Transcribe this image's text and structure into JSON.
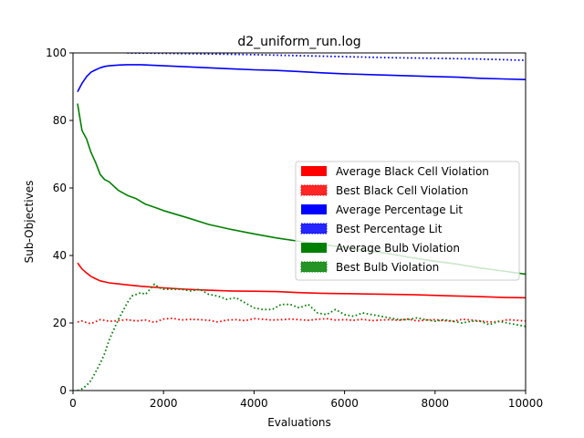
{
  "chart_data": {
    "type": "line",
    "title": "d2_uniform_run.log",
    "xlabel": "Evaluations",
    "ylabel": "Sub-Objectives",
    "xlim": [
      0,
      10000
    ],
    "ylim": [
      0,
      100
    ],
    "xticks": [
      0,
      2000,
      4000,
      6000,
      8000,
      10000
    ],
    "yticks": [
      0,
      20,
      40,
      60,
      80,
      100
    ],
    "grid": false,
    "legend_position": "center-right",
    "series": [
      {
        "name": "Average Black Cell Violation",
        "color": "#ff0000",
        "style": "solid",
        "x": [
          100,
          200,
          300,
          400,
          500,
          600,
          700,
          800,
          1000,
          1200,
          1500,
          2000,
          2500,
          3000,
          3500,
          4000,
          4500,
          5000,
          5500,
          6000,
          6500,
          7000,
          7500,
          8000,
          8500,
          9000,
          9500,
          10000
        ],
        "y": [
          37.8,
          36.0,
          34.8,
          33.8,
          33.1,
          32.5,
          32.2,
          31.9,
          31.6,
          31.3,
          30.9,
          30.4,
          30.0,
          29.7,
          29.5,
          29.4,
          29.3,
          29.0,
          28.8,
          28.7,
          28.6,
          28.5,
          28.4,
          28.2,
          28.0,
          27.8,
          27.6,
          27.5
        ]
      },
      {
        "name": "Best Black Cell Violation",
        "color": "#ff0000",
        "style": "dotted",
        "x": [
          100,
          200,
          300,
          400,
          500,
          600,
          700,
          800,
          1000,
          1200,
          1400,
          1600,
          1800,
          2000,
          2200,
          2400,
          2600,
          2800,
          3000,
          3200,
          3400,
          3600,
          3800,
          4000,
          4200,
          4400,
          4600,
          4800,
          5000,
          5200,
          5400,
          5600,
          5800,
          6000,
          6200,
          6400,
          6600,
          6800,
          7000,
          7200,
          7400,
          7600,
          7800,
          8000,
          8200,
          8400,
          8600,
          8800,
          9000,
          9200,
          9400,
          9600,
          9800,
          10000
        ],
        "y": [
          20.3,
          20.6,
          20.1,
          19.8,
          20.4,
          21.0,
          20.8,
          20.5,
          20.7,
          21.0,
          20.6,
          20.9,
          20.2,
          21.2,
          21.4,
          20.9,
          21.1,
          21.0,
          20.8,
          20.3,
          20.9,
          21.0,
          20.7,
          21.3,
          21.1,
          20.9,
          21.0,
          21.2,
          21.0,
          20.8,
          21.1,
          21.3,
          20.9,
          21.0,
          20.8,
          21.1,
          20.7,
          20.9,
          21.0,
          20.8,
          21.2,
          20.6,
          20.9,
          21.0,
          20.7,
          20.5,
          21.1,
          20.9,
          20.6,
          20.3,
          20.4,
          21.0,
          20.8,
          20.6
        ]
      },
      {
        "name": "Average Percentage Lit",
        "color": "#0000ff",
        "style": "solid",
        "x": [
          100,
          200,
          300,
          400,
          500,
          600,
          700,
          800,
          1000,
          1200,
          1500,
          2000,
          2500,
          3000,
          3500,
          4000,
          4500,
          5000,
          5500,
          6000,
          6500,
          7000,
          7500,
          8000,
          8500,
          9000,
          9500,
          10000
        ],
        "y": [
          88.5,
          91.0,
          93.0,
          94.3,
          95.0,
          95.6,
          96.0,
          96.2,
          96.4,
          96.5,
          96.5,
          96.2,
          95.9,
          95.6,
          95.3,
          95.0,
          94.8,
          94.5,
          94.1,
          93.8,
          93.6,
          93.4,
          93.2,
          93.0,
          92.8,
          92.5,
          92.3,
          92.1
        ]
      },
      {
        "name": "Best Percentage Lit",
        "color": "#0000ff",
        "style": "dotted",
        "x": [
          1200,
          2000,
          3000,
          4000,
          5000,
          6000,
          7000,
          8000,
          9000,
          9500,
          10000
        ],
        "y": [
          100,
          99.9,
          99.7,
          99.5,
          99.2,
          98.9,
          98.6,
          98.4,
          98.2,
          98.0,
          97.8
        ]
      },
      {
        "name": "Average Bulb Violation",
        "color": "#008000",
        "style": "solid",
        "x": [
          100,
          150,
          200,
          300,
          400,
          500,
          600,
          700,
          800,
          1000,
          1200,
          1400,
          1600,
          1800,
          2000,
          2500,
          3000,
          3500,
          4000,
          4500,
          5000,
          5500,
          6000,
          6500,
          7000,
          7500,
          8000,
          8500,
          9000,
          9500,
          10000
        ],
        "y": [
          85.0,
          81.0,
          77.0,
          74.5,
          70.5,
          67.5,
          64.0,
          62.5,
          61.8,
          59.3,
          57.8,
          56.8,
          55.2,
          54.3,
          53.3,
          51.3,
          49.2,
          47.7,
          46.4,
          45.2,
          44.2,
          43.3,
          42.4,
          41.4,
          40.5,
          39.3,
          38.3,
          37.4,
          36.3,
          35.4,
          34.5
        ]
      },
      {
        "name": "Best Bulb Violation",
        "color": "#008000",
        "style": "dotted",
        "x": [
          100,
          200,
          300,
          400,
          500,
          600,
          700,
          800,
          900,
          1000,
          1100,
          1200,
          1300,
          1400,
          1500,
          1600,
          1700,
          1800,
          1900,
          2000,
          2200,
          2400,
          2600,
          2800,
          3000,
          3200,
          3400,
          3600,
          3800,
          4000,
          4200,
          4400,
          4600,
          4800,
          5000,
          5200,
          5400,
          5600,
          5800,
          6000,
          6200,
          6400,
          6600,
          6800,
          7000,
          7200,
          7400,
          7600,
          7800,
          8000,
          8200,
          8400,
          8600,
          8800,
          9000,
          9200,
          9400,
          9600,
          9800,
          10000
        ],
        "y": [
          0,
          0.5,
          1.5,
          3,
          5.5,
          8,
          11,
          15,
          18,
          21,
          23.5,
          26,
          28,
          28.5,
          29,
          28.5,
          30,
          31.5,
          30.5,
          30,
          30,
          30,
          29.5,
          30,
          28.5,
          28,
          27,
          27.5,
          26,
          24.5,
          24,
          24,
          25.5,
          25.5,
          24.5,
          25.5,
          23,
          22.5,
          24,
          22.5,
          22,
          23,
          22.5,
          22,
          21.5,
          21,
          21,
          21.5,
          21,
          20.5,
          21,
          20.5,
          20,
          20.5,
          20.5,
          19.5,
          20.5,
          20,
          19.5,
          19
        ]
      }
    ]
  }
}
